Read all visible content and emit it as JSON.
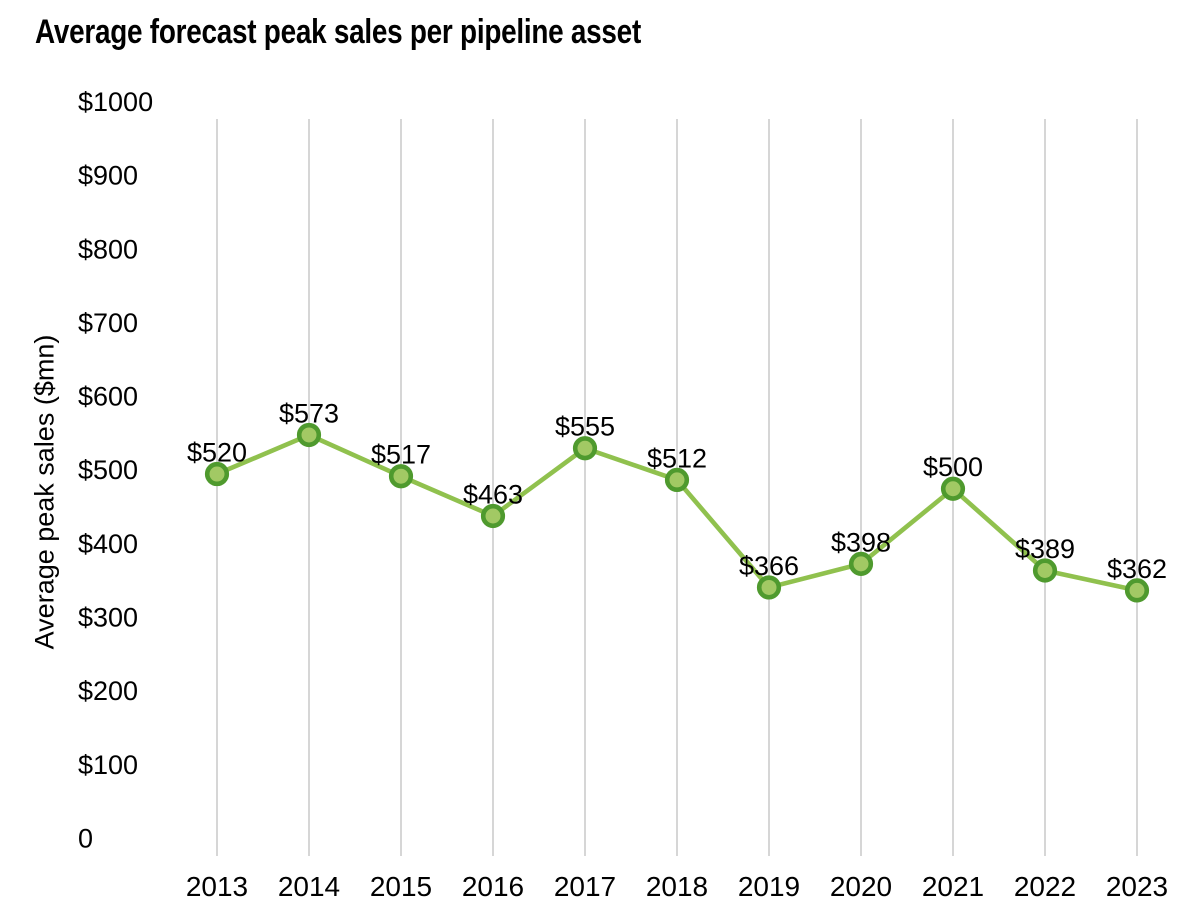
{
  "chart_data": {
    "type": "line",
    "title": "Average forecast peak sales per pipeline asset",
    "ylabel": "Average peak sales ($mn)",
    "xlabel": "",
    "categories": [
      "2013",
      "2014",
      "2015",
      "2016",
      "2017",
      "2018",
      "2019",
      "2020",
      "2021",
      "2022",
      "2023"
    ],
    "series": [
      {
        "name": "Average forecast peak sales per pipeline asset",
        "values": [
          520,
          573,
          517,
          463,
          555,
          512,
          366,
          398,
          500,
          389,
          362
        ]
      }
    ],
    "data_labels": [
      "$520",
      "$573",
      "$517",
      "$463",
      "$555",
      "$512",
      "$366",
      "$398",
      "$500",
      "$389",
      "$362"
    ],
    "y_ticks": [
      {
        "value": 0,
        "label": "0"
      },
      {
        "value": 100,
        "label": "$100"
      },
      {
        "value": 200,
        "label": "$200"
      },
      {
        "value": 300,
        "label": "$300"
      },
      {
        "value": 400,
        "label": "$400"
      },
      {
        "value": 500,
        "label": "$500"
      },
      {
        "value": 600,
        "label": "$600"
      },
      {
        "value": 700,
        "label": "$700"
      },
      {
        "value": 800,
        "label": "$800"
      },
      {
        "value": 900,
        "label": "$900"
      },
      {
        "value": 1000,
        "label": "$1000"
      }
    ],
    "ylim": [
      0,
      1000
    ],
    "grid": "vertical-only",
    "legend": "none",
    "colors": {
      "line": "#90c14e",
      "marker_fill": "#a2c964",
      "marker_stroke": "#4f9a2e",
      "gridline": "#d6d6d6",
      "text": "#000000",
      "background": "#ffffff"
    }
  }
}
